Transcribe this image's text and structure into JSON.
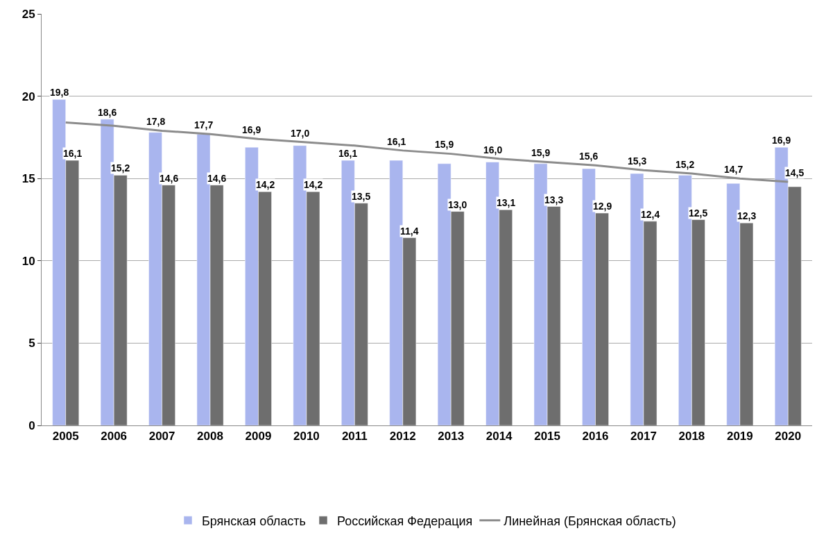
{
  "chart_data": {
    "type": "bar",
    "categories": [
      "2005",
      "2006",
      "2007",
      "2008",
      "2009",
      "2010",
      "2011",
      "2012",
      "2013",
      "2014",
      "2015",
      "2016",
      "2017",
      "2018",
      "2019",
      "2020"
    ],
    "series": [
      {
        "name": "Брянская область",
        "color": "#a9b5ee",
        "values": [
          19.8,
          18.6,
          17.8,
          17.7,
          16.9,
          17.0,
          16.1,
          16.1,
          15.9,
          16.0,
          15.9,
          15.6,
          15.3,
          15.2,
          14.7,
          16.9
        ],
        "value_labels": [
          "19,8",
          "18,6",
          "17,8",
          "17,7",
          "16,9",
          "17,0",
          "16,1",
          "16,1",
          "15,9",
          "16,0",
          "15,9",
          "15,6",
          "15,3",
          "15,2",
          "14,7",
          "16,9"
        ]
      },
      {
        "name": "Российская Федерация",
        "color": "#6e6e6e",
        "values": [
          16.1,
          15.2,
          14.6,
          14.6,
          14.2,
          14.2,
          13.5,
          11.4,
          13.0,
          13.1,
          13.3,
          12.9,
          12.4,
          12.5,
          12.3,
          14.5
        ],
        "value_labels": [
          "16,1",
          "15,2",
          "14,6",
          "14,6",
          "14,2",
          "14,2",
          "13,5",
          "11,4",
          "13,0",
          "13,1",
          "13,3",
          "12,9",
          "12,4",
          "12,5",
          "12,3",
          "14,5"
        ]
      },
      {
        "name": "Линейная (Брянская область)",
        "type": "line",
        "color": "#8c8c8c",
        "values": [
          18.4,
          18.2,
          17.9,
          17.7,
          17.4,
          17.2,
          17.0,
          16.7,
          16.5,
          16.2,
          16.0,
          15.8,
          15.5,
          15.3,
          15.0,
          14.8
        ]
      }
    ],
    "ylim": [
      0,
      25
    ],
    "yticks": [
      0,
      5,
      10,
      15,
      20,
      25
    ],
    "grid": "y",
    "legend": "bottom"
  }
}
